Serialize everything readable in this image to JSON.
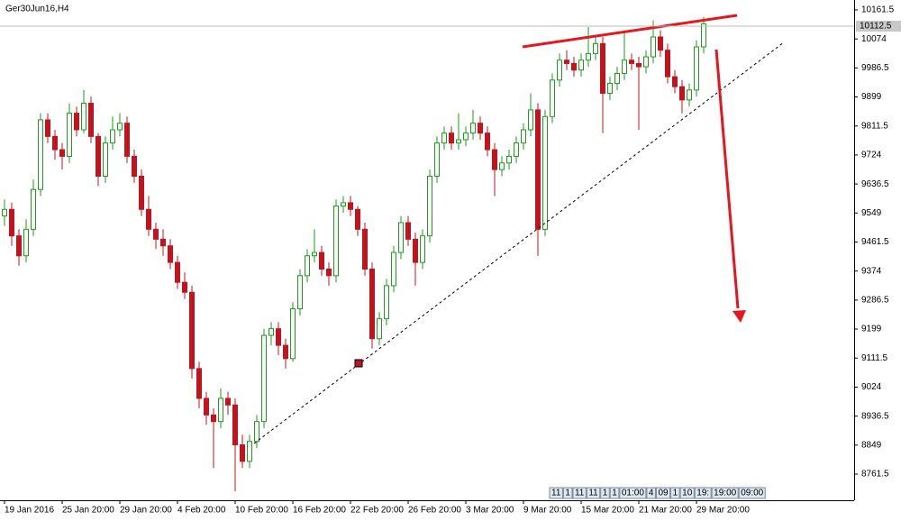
{
  "chart_data": {
    "type": "candlestick",
    "title": "Ger30Jun16,H4",
    "categories": [
      "19 Jan 2016",
      null,
      null,
      null,
      null,
      null,
      null,
      null,
      "25 Jan 20:00",
      null,
      null,
      null,
      null,
      null,
      null,
      null,
      "29 Jan 20:00",
      null,
      null,
      null,
      null,
      null,
      null,
      null,
      "4 Feb 20:00",
      null,
      null,
      null,
      null,
      null,
      null,
      null,
      "10 Feb 20:00",
      null,
      null,
      null,
      null,
      null,
      null,
      null,
      "16 Feb 20:00",
      null,
      null,
      null,
      null,
      null,
      null,
      null,
      "22 Feb 20:00",
      null,
      null,
      null,
      null,
      null,
      null,
      null,
      "26 Feb 20:00",
      null,
      null,
      null,
      null,
      null,
      null,
      null,
      "3 Mar 20:00",
      null,
      null,
      null,
      null,
      null,
      null,
      null,
      "9 Mar 20:00",
      null,
      null,
      null,
      null,
      null,
      null,
      null,
      "15 Mar 20:00",
      null,
      null,
      null,
      null,
      null,
      null,
      null,
      "21 Mar 20:00",
      null,
      null,
      null,
      null,
      null,
      null,
      null,
      "29 Mar 20:00",
      null
    ],
    "ohlc": [
      [
        9540,
        9590,
        9510,
        9560
      ],
      [
        9560,
        9580,
        9450,
        9480
      ],
      [
        9480,
        9500,
        9390,
        9420
      ],
      [
        9420,
        9530,
        9400,
        9500
      ],
      [
        9500,
        9650,
        9480,
        9620
      ],
      [
        9620,
        9850,
        9600,
        9830
      ],
      [
        9830,
        9850,
        9760,
        9780
      ],
      [
        9780,
        9800,
        9710,
        9740
      ],
      [
        9740,
        9760,
        9680,
        9720
      ],
      [
        9720,
        9880,
        9700,
        9850
      ],
      [
        9850,
        9870,
        9780,
        9800
      ],
      [
        9800,
        9920,
        9790,
        9880
      ],
      [
        9880,
        9900,
        9760,
        9780
      ],
      [
        9780,
        9790,
        9630,
        9660
      ],
      [
        9660,
        9780,
        9640,
        9760
      ],
      [
        9760,
        9840,
        9740,
        9800
      ],
      [
        9800,
        9850,
        9780,
        9820
      ],
      [
        9820,
        9840,
        9700,
        9720
      ],
      [
        9720,
        9740,
        9640,
        9660
      ],
      [
        9660,
        9680,
        9540,
        9560
      ],
      [
        9560,
        9600,
        9480,
        9500
      ],
      [
        9500,
        9520,
        9440,
        9470
      ],
      [
        9470,
        9500,
        9420,
        9450
      ],
      [
        9450,
        9470,
        9380,
        9400
      ],
      [
        9400,
        9420,
        9320,
        9340
      ],
      [
        9340,
        9370,
        9290,
        9310
      ],
      [
        9310,
        9330,
        9050,
        9080
      ],
      [
        9080,
        9100,
        8960,
        8990
      ],
      [
        8990,
        9010,
        8910,
        8940
      ],
      [
        8940,
        8960,
        8780,
        8920
      ],
      [
        8920,
        9020,
        8900,
        8990
      ],
      [
        8990,
        9010,
        8940,
        8970
      ],
      [
        8970,
        8990,
        8710,
        8850
      ],
      [
        8850,
        8880,
        8780,
        8800
      ],
      [
        8800,
        8880,
        8780,
        8860
      ],
      [
        8860,
        8940,
        8840,
        8920
      ],
      [
        8920,
        9200,
        8900,
        9180
      ],
      [
        9180,
        9220,
        9150,
        9200
      ],
      [
        9200,
        9220,
        9120,
        9150
      ],
      [
        9150,
        9170,
        9080,
        9110
      ],
      [
        9110,
        9280,
        9100,
        9260
      ],
      [
        9260,
        9380,
        9240,
        9360
      ],
      [
        9360,
        9440,
        9340,
        9420
      ],
      [
        9420,
        9500,
        9400,
        9430
      ],
      [
        9430,
        9450,
        9360,
        9380
      ],
      [
        9380,
        9400,
        9330,
        9360
      ],
      [
        9360,
        9590,
        9340,
        9570
      ],
      [
        9570,
        9600,
        9550,
        9580
      ],
      [
        9580,
        9600,
        9540,
        9560
      ],
      [
        9560,
        9570,
        9480,
        9500
      ],
      [
        9500,
        9520,
        9360,
        9380
      ],
      [
        9380,
        9400,
        9140,
        9170
      ],
      [
        9170,
        9250,
        9150,
        9230
      ],
      [
        9230,
        9350,
        9210,
        9330
      ],
      [
        9330,
        9450,
        9310,
        9430
      ],
      [
        9430,
        9540,
        9410,
        9520
      ],
      [
        9520,
        9540,
        9450,
        9470
      ],
      [
        9470,
        9490,
        9330,
        9400
      ],
      [
        9400,
        9500,
        9380,
        9480
      ],
      [
        9480,
        9680,
        9460,
        9660
      ],
      [
        9660,
        9780,
        9640,
        9760
      ],
      [
        9760,
        9810,
        9740,
        9790
      ],
      [
        9790,
        9810,
        9740,
        9760
      ],
      [
        9760,
        9850,
        9740,
        9770
      ],
      [
        9770,
        9810,
        9750,
        9790
      ],
      [
        9790,
        9860,
        9770,
        9820
      ],
      [
        9820,
        9840,
        9770,
        9790
      ],
      [
        9790,
        9810,
        9720,
        9740
      ],
      [
        9740,
        9760,
        9600,
        9680
      ],
      [
        9680,
        9720,
        9660,
        9700
      ],
      [
        9700,
        9740,
        9680,
        9720
      ],
      [
        9720,
        9780,
        9700,
        9760
      ],
      [
        9760,
        9820,
        9740,
        9800
      ],
      [
        9800,
        9910,
        9780,
        9860
      ],
      [
        9860,
        9880,
        9420,
        9500
      ],
      [
        9500,
        9860,
        9480,
        9840
      ],
      [
        9840,
        9970,
        9820,
        9950
      ],
      [
        9950,
        10030,
        9930,
        10010
      ],
      [
        10010,
        10040,
        9980,
        10000
      ],
      [
        10000,
        10020,
        9960,
        9980
      ],
      [
        9980,
        10030,
        9960,
        10010
      ],
      [
        10010,
        10110,
        9990,
        10030
      ],
      [
        10030,
        10080,
        10010,
        10060
      ],
      [
        10060,
        10080,
        9790,
        9910
      ],
      [
        9910,
        9960,
        9890,
        9940
      ],
      [
        9940,
        9990,
        9920,
        9970
      ],
      [
        9970,
        10100,
        9950,
        10010
      ],
      [
        10010,
        10030,
        9980,
        10000
      ],
      [
        10000,
        10020,
        9800,
        9990
      ],
      [
        9990,
        10040,
        9970,
        10020
      ],
      [
        10020,
        10130,
        10000,
        10080
      ],
      [
        10080,
        10100,
        10020,
        10040
      ],
      [
        10040,
        10060,
        9940,
        9960
      ],
      [
        9960,
        9980,
        9910,
        9930
      ],
      [
        9930,
        9950,
        9850,
        9890
      ],
      [
        9890,
        9940,
        9870,
        9920
      ],
      [
        9920,
        10070,
        9900,
        10050
      ],
      [
        10050,
        10140,
        10030,
        10120
      ]
    ],
    "up_color": "#1a9e1a",
    "down_color": "#c0141e",
    "ylim": [
      8682.7,
      10191.4
    ],
    "yticks": [
      10161.5,
      10074.0,
      9986.5,
      9899.0,
      9811.5,
      9724.0,
      9636.5,
      9549.0,
      9461.5,
      9374.0,
      9286.5,
      9199.0,
      9111.5,
      9024.0,
      8936.5,
      8849.0,
      8761.5
    ],
    "current_price": 10112.5,
    "scroll_labels": [
      "11",
      "1",
      "11",
      "11",
      "1",
      "1",
      "01:00",
      "4",
      "09",
      "1",
      "10",
      "19:",
      "19:00",
      "09:00"
    ]
  }
}
